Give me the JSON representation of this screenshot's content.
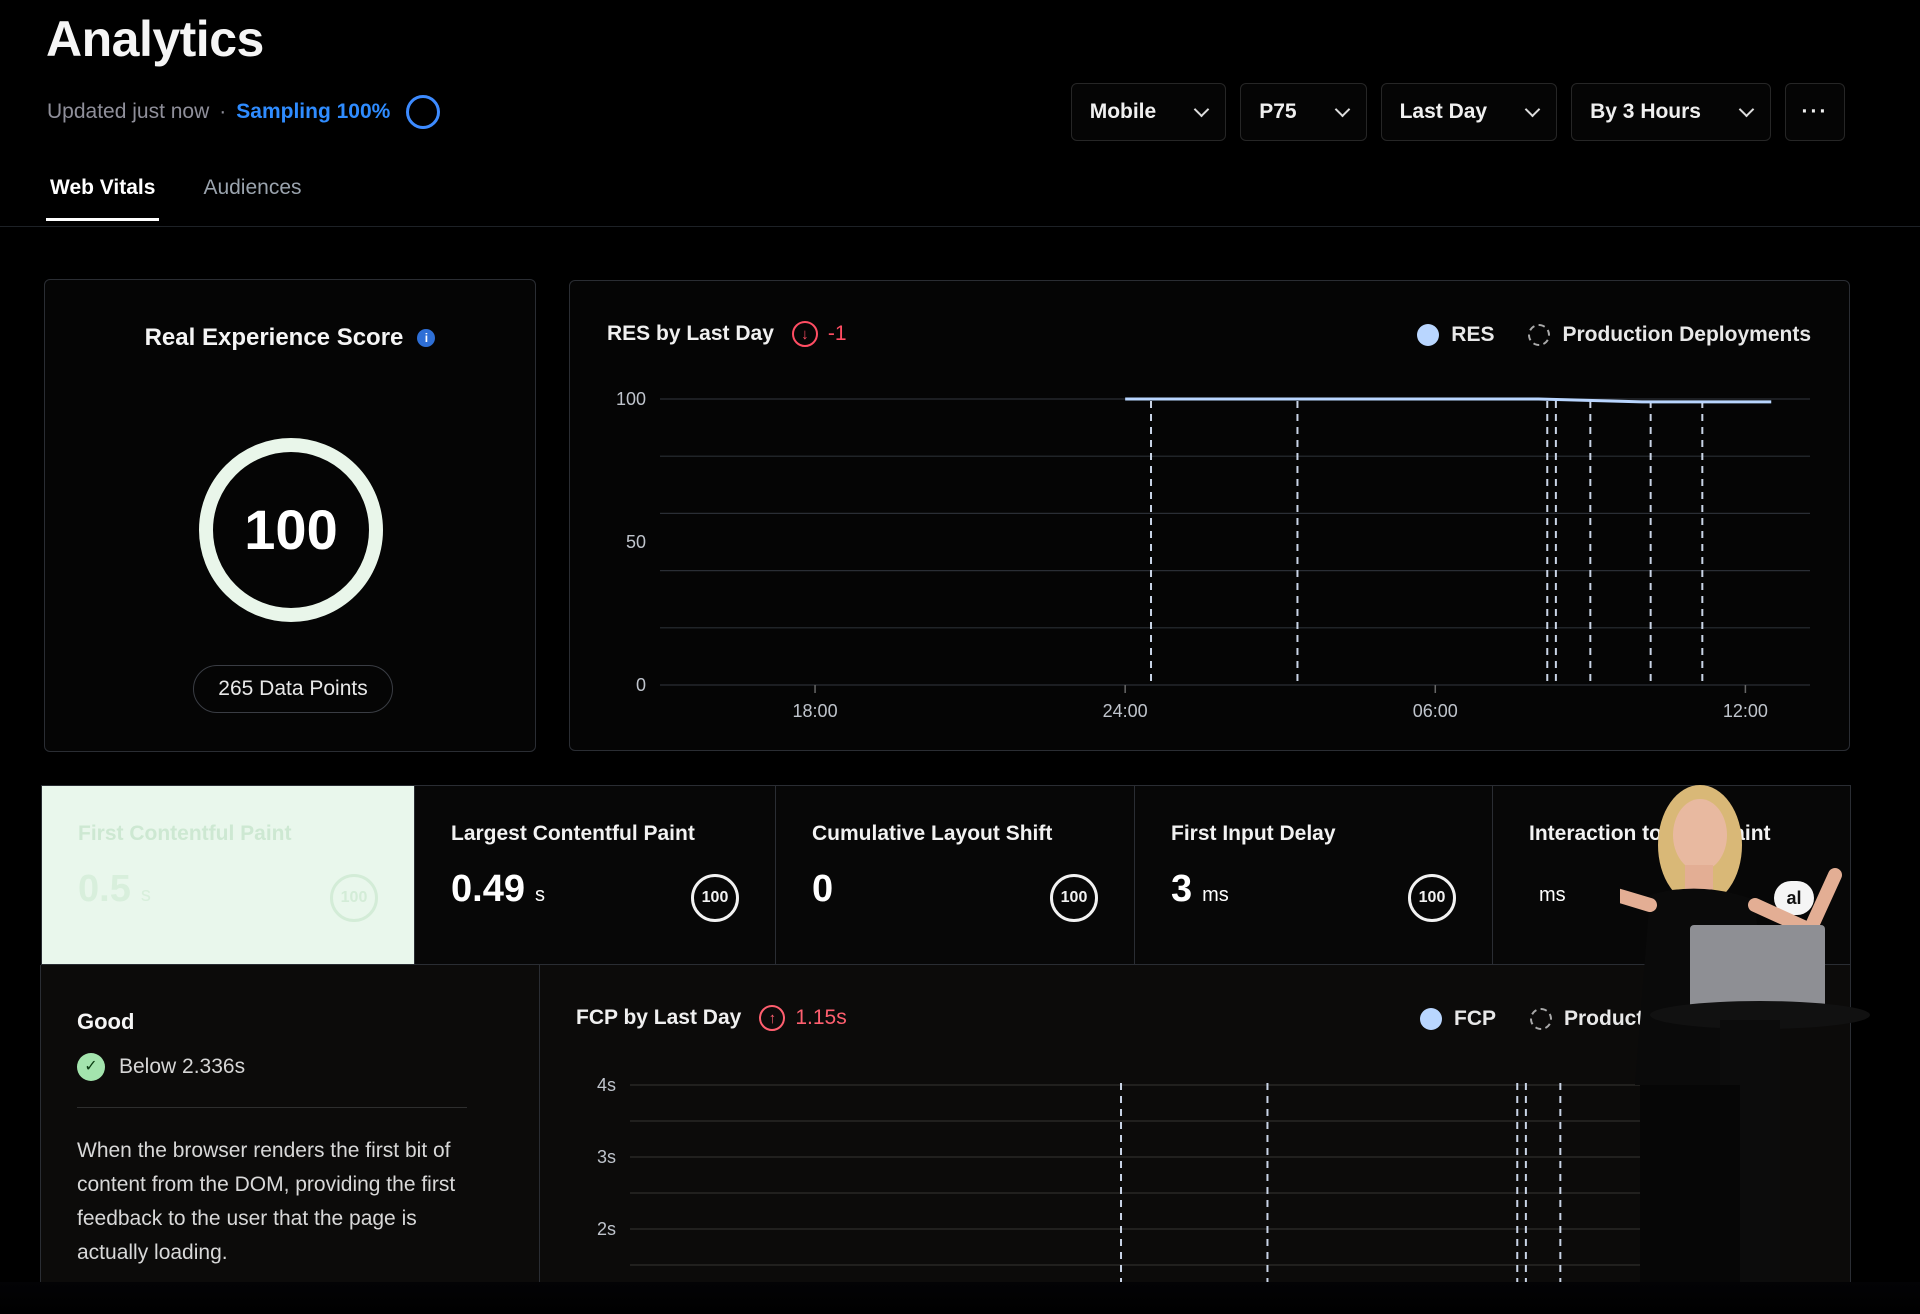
{
  "header": {
    "title": "Analytics",
    "updated": "Updated just now",
    "separator": "·",
    "sampling": "Sampling 100%"
  },
  "filters": [
    {
      "label": "Mobile"
    },
    {
      "label": "P75"
    },
    {
      "label": "Last Day"
    },
    {
      "label": "By 3 Hours"
    }
  ],
  "more_label": "···",
  "tabs": [
    {
      "label": "Web Vitals",
      "active": true
    },
    {
      "label": "Audiences",
      "active": false
    }
  ],
  "score_card": {
    "title": "Real Experience Score",
    "info_icon": "i",
    "score": "100",
    "data_points": "265 Data Points"
  },
  "res_chart": {
    "title": "RES by Last Day",
    "trend_icon": "↓",
    "trend": "-1",
    "legend": [
      "RES",
      "Production Deployments"
    ]
  },
  "metrics": [
    {
      "label": "First Contentful Paint",
      "value": "0.5",
      "unit": "s",
      "badge": "100",
      "active": true
    },
    {
      "label": "Largest Contentful Paint",
      "value": "0.49",
      "unit": "s",
      "badge": "100",
      "active": false
    },
    {
      "label": "Cumulative Layout Shift",
      "value": "0",
      "unit": "",
      "badge": "100",
      "active": false
    },
    {
      "label": "First Input Delay",
      "value": "3",
      "unit": "ms",
      "badge": "100",
      "active": false
    },
    {
      "label": "Interaction to Next Paint",
      "value": "",
      "unit": "ms",
      "badge": "al",
      "active": false
    }
  ],
  "info_panel": {
    "status": "Good",
    "check_icon": "✓",
    "threshold": "Below 2.336s",
    "description": "When the browser renders the first bit of content from the DOM, providing the first feedback to the user that the page is actually loading."
  },
  "fcp_chart": {
    "title": "FCP by Last Day",
    "trend_icon": "↑",
    "trend": "1.15s",
    "legend": [
      "FCP",
      "Production Deployments"
    ]
  },
  "colors": {
    "accent": "#2f8cff",
    "negative": "#ff4d63",
    "good": "#a3e4ad",
    "line": "#b9d6ff"
  },
  "chart_data": [
    {
      "type": "line",
      "title": "RES by Last Day",
      "series": [
        {
          "name": "RES",
          "x": [
            "00:00",
            "00:30",
            "03:00",
            "06:00",
            "08:00",
            "10:00",
            "12:00",
            "12:30"
          ],
          "values": [
            100,
            100,
            100,
            100,
            100,
            99,
            99,
            99
          ]
        }
      ],
      "deployments": [
        "00:30",
        "03:20",
        "08:10",
        "08:20",
        "09:00",
        "10:10",
        "11:10"
      ],
      "x_ticks": [
        "18:00",
        "24:00",
        "06:00",
        "12:00"
      ],
      "y_ticks": [
        0,
        50,
        100
      ],
      "ylim": [
        0,
        100
      ],
      "grid": true,
      "legend_position": "top-right"
    },
    {
      "type": "line",
      "title": "FCP by Last Day",
      "series": [
        {
          "name": "FCP",
          "x": [],
          "values": []
        }
      ],
      "deployments": [
        "00:30",
        "03:20",
        "08:10",
        "08:20",
        "09:00"
      ],
      "y_ticks": [
        "2s",
        "3s",
        "4s"
      ],
      "grid": true,
      "legend_position": "top-right"
    }
  ]
}
